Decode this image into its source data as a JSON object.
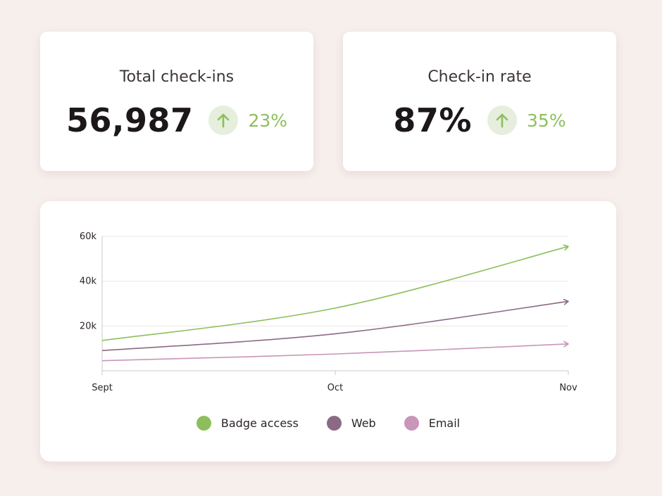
{
  "colors": {
    "positive": "#8cbf5c",
    "badge_access": "#8cbf5c",
    "web": "#8a6a84",
    "email": "#c995b9"
  },
  "kpis": [
    {
      "title": "Total check-ins",
      "value": "56,987",
      "trend_icon": "arrow-up-icon",
      "change": "23%"
    },
    {
      "title": "Check-in rate",
      "value": "87%",
      "trend_icon": "arrow-up-icon",
      "change": "35%"
    }
  ],
  "chart_data": {
    "type": "line",
    "x": [
      "Sept",
      "Oct",
      "Nov"
    ],
    "ylim": [
      0,
      60000
    ],
    "yticks": [
      {
        "value": 20000,
        "label": "20k"
      },
      {
        "value": 40000,
        "label": "40k"
      },
      {
        "value": 60000,
        "label": "60k"
      }
    ],
    "grid": true,
    "legend_position": "bottom",
    "line_end": "arrow",
    "series": [
      {
        "name": "Badge access",
        "color": "#8cbf5c",
        "values": [
          13500,
          28000,
          55500
        ]
      },
      {
        "name": "Web",
        "color": "#8a6a84",
        "values": [
          9000,
          16500,
          31000
        ]
      },
      {
        "name": "Email",
        "color": "#c995b9",
        "values": [
          4500,
          7500,
          12000
        ]
      }
    ]
  }
}
